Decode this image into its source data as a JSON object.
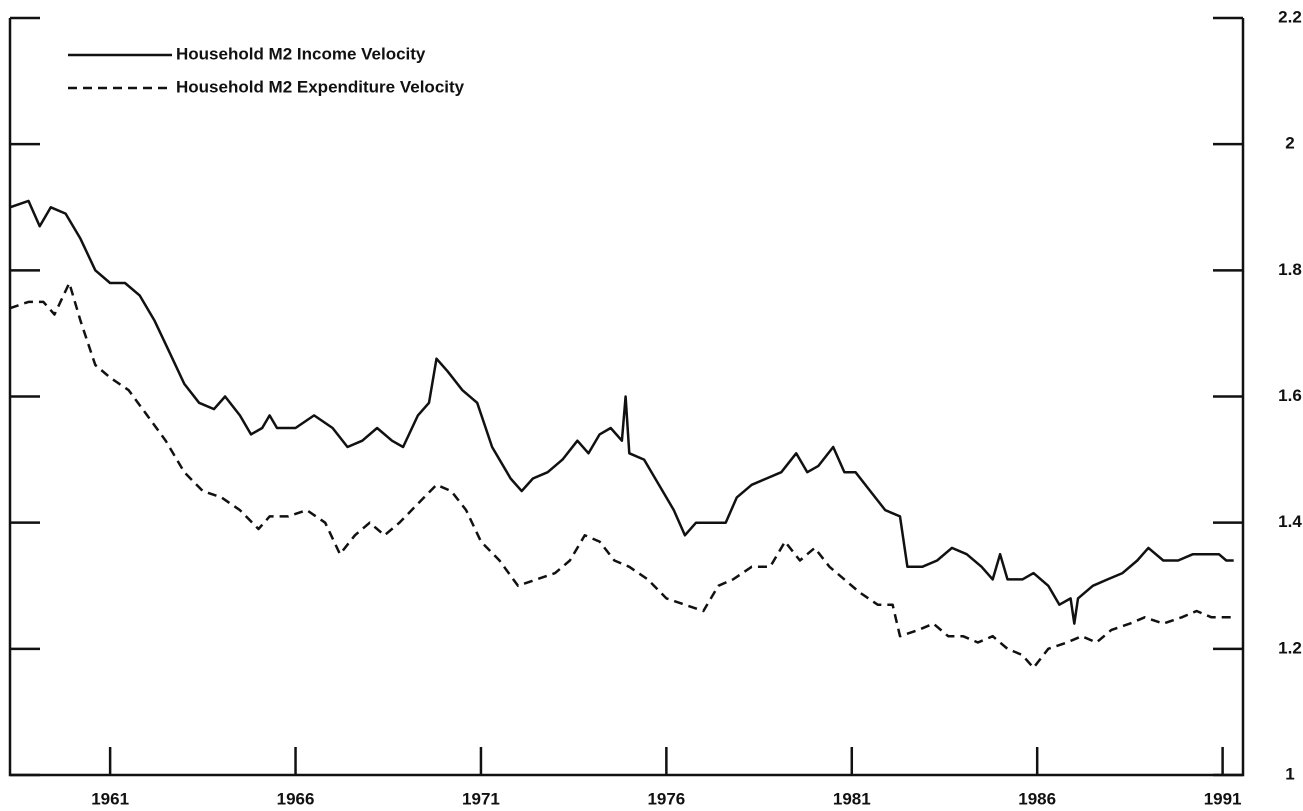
{
  "chart_data": {
    "type": "line",
    "xlim": [
      1958.3,
      1991.55
    ],
    "xticks": [
      1961,
      1966,
      1971,
      1976,
      1981,
      1986,
      1991
    ],
    "ylim": [
      1,
      2.2
    ],
    "yticks": [
      1,
      1.2,
      1.4,
      1.6,
      1.8,
      2,
      2.2
    ],
    "legend": "upper left",
    "series": [
      {
        "name": "Household M2 Income Velocity",
        "color": "#111111",
        "dash": "solid",
        "x": [
          1958.3,
          1958.8,
          1959.1,
          1959.4,
          1959.8,
          1960.2,
          1960.6,
          1961.0,
          1961.4,
          1961.8,
          1962.2,
          1962.6,
          1963.0,
          1963.4,
          1963.8,
          1964.1,
          1964.5,
          1964.8,
          1965.1,
          1965.3,
          1965.5,
          1966.0,
          1966.5,
          1967.0,
          1967.4,
          1967.8,
          1968.2,
          1968.6,
          1968.9,
          1969.3,
          1969.6,
          1969.8,
          1970.1,
          1970.5,
          1970.9,
          1971.3,
          1971.8,
          1972.1,
          1972.4,
          1972.8,
          1973.2,
          1973.6,
          1973.9,
          1974.2,
          1974.5,
          1974.8,
          1974.9,
          1975.0,
          1975.4,
          1975.8,
          1976.2,
          1976.5,
          1976.8,
          1977.2,
          1977.6,
          1977.9,
          1978.3,
          1978.7,
          1979.1,
          1979.5,
          1979.8,
          1980.1,
          1980.5,
          1980.8,
          1981.1,
          1981.5,
          1981.9,
          1982.3,
          1982.5,
          1982.9,
          1983.3,
          1983.7,
          1984.1,
          1984.5,
          1984.8,
          1985.0,
          1985.2,
          1985.6,
          1985.9,
          1986.3,
          1986.6,
          1986.9,
          1987.0,
          1987.1,
          1987.5,
          1987.9,
          1988.3,
          1988.7,
          1989.0,
          1989.4,
          1989.8,
          1990.2,
          1990.6,
          1990.9,
          1991.1,
          1991.3
        ],
        "values": [
          1.9,
          1.91,
          1.87,
          1.9,
          1.89,
          1.85,
          1.8,
          1.78,
          1.78,
          1.76,
          1.72,
          1.67,
          1.62,
          1.59,
          1.58,
          1.6,
          1.57,
          1.54,
          1.55,
          1.57,
          1.55,
          1.55,
          1.57,
          1.55,
          1.52,
          1.53,
          1.55,
          1.53,
          1.52,
          1.57,
          1.59,
          1.66,
          1.64,
          1.61,
          1.59,
          1.52,
          1.47,
          1.45,
          1.47,
          1.48,
          1.5,
          1.53,
          1.51,
          1.54,
          1.55,
          1.53,
          1.6,
          1.51,
          1.5,
          1.46,
          1.42,
          1.38,
          1.4,
          1.4,
          1.4,
          1.44,
          1.46,
          1.47,
          1.48,
          1.51,
          1.48,
          1.49,
          1.52,
          1.48,
          1.48,
          1.45,
          1.42,
          1.41,
          1.33,
          1.33,
          1.34,
          1.36,
          1.35,
          1.33,
          1.31,
          1.35,
          1.31,
          1.31,
          1.32,
          1.3,
          1.27,
          1.28,
          1.24,
          1.28,
          1.3,
          1.31,
          1.32,
          1.34,
          1.36,
          1.34,
          1.34,
          1.35,
          1.35,
          1.35,
          1.34,
          1.34
        ]
      },
      {
        "name": "Household M2 Expenditure Velocity",
        "color": "#111111",
        "dash": "dashed",
        "x": [
          1958.3,
          1958.8,
          1959.2,
          1959.5,
          1959.9,
          1960.2,
          1960.6,
          1961.0,
          1961.5,
          1962.0,
          1962.5,
          1963.0,
          1963.5,
          1964.0,
          1964.5,
          1965.0,
          1965.3,
          1965.8,
          1966.3,
          1966.8,
          1967.2,
          1967.6,
          1968.0,
          1968.4,
          1968.8,
          1969.3,
          1969.8,
          1970.2,
          1970.6,
          1971.0,
          1971.5,
          1972.0,
          1972.5,
          1973.0,
          1973.4,
          1973.8,
          1974.2,
          1974.6,
          1975.0,
          1975.5,
          1976.0,
          1976.5,
          1977.0,
          1977.4,
          1977.8,
          1978.3,
          1978.8,
          1979.2,
          1979.6,
          1980.0,
          1980.4,
          1980.8,
          1981.2,
          1981.7,
          1982.1,
          1982.3,
          1982.8,
          1983.2,
          1983.6,
          1984.0,
          1984.4,
          1984.8,
          1985.2,
          1985.6,
          1985.9,
          1986.3,
          1986.8,
          1987.2,
          1987.6,
          1988.0,
          1988.5,
          1988.9,
          1989.4,
          1989.9,
          1990.3,
          1990.7,
          1991.0,
          1991.3
        ],
        "values": [
          1.74,
          1.75,
          1.75,
          1.73,
          1.78,
          1.72,
          1.65,
          1.63,
          1.61,
          1.57,
          1.53,
          1.48,
          1.45,
          1.44,
          1.42,
          1.39,
          1.41,
          1.41,
          1.42,
          1.4,
          1.35,
          1.38,
          1.4,
          1.38,
          1.4,
          1.43,
          1.46,
          1.45,
          1.42,
          1.37,
          1.34,
          1.3,
          1.31,
          1.32,
          1.34,
          1.38,
          1.37,
          1.34,
          1.33,
          1.31,
          1.28,
          1.27,
          1.26,
          1.3,
          1.31,
          1.33,
          1.33,
          1.37,
          1.34,
          1.36,
          1.33,
          1.31,
          1.29,
          1.27,
          1.27,
          1.22,
          1.23,
          1.24,
          1.22,
          1.22,
          1.21,
          1.22,
          1.2,
          1.19,
          1.17,
          1.2,
          1.21,
          1.22,
          1.21,
          1.23,
          1.24,
          1.25,
          1.24,
          1.25,
          1.26,
          1.25,
          1.25,
          1.25
        ]
      }
    ]
  }
}
